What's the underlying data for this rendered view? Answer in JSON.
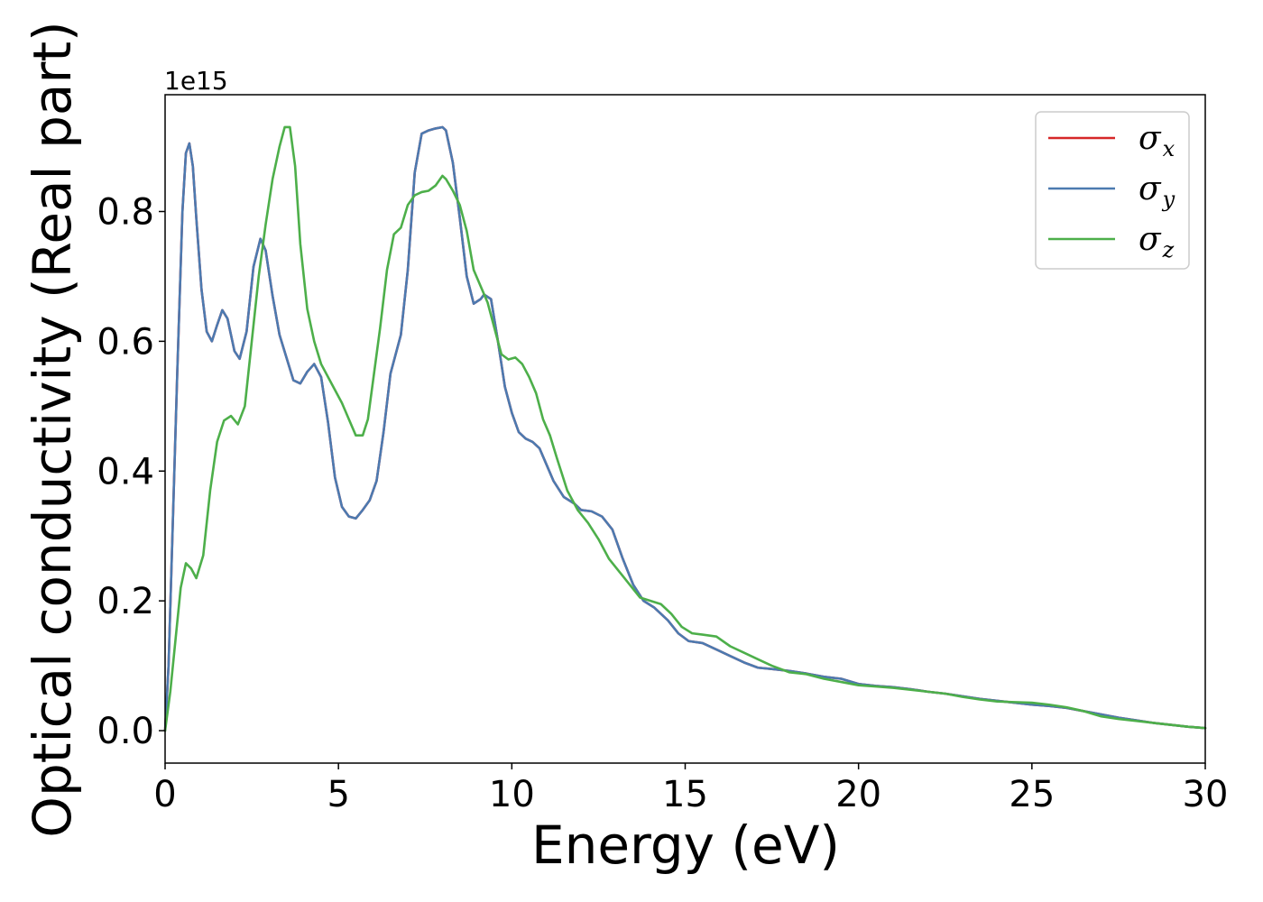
{
  "chart_data": {
    "type": "line",
    "xlabel": "Energy (eV)",
    "ylabel": "Optical conductivity (Real part)",
    "y_offset_label": "1e15",
    "y_scale": 1000000000000000.0,
    "xlim": [
      0,
      30
    ],
    "ylim": [
      -0.05,
      0.98
    ],
    "x_ticks": [
      0,
      5,
      10,
      15,
      20,
      25,
      30
    ],
    "x_tick_labels": [
      "0",
      "5",
      "10",
      "15",
      "20",
      "25",
      "30"
    ],
    "y_ticks": [
      0.0,
      0.2,
      0.4,
      0.6,
      0.8
    ],
    "y_tick_labels": [
      "0.0",
      "0.2",
      "0.4",
      "0.6",
      "0.8"
    ],
    "grid": false,
    "legend_position": "top-right",
    "series": [
      {
        "name": "σx",
        "symbol": "σ",
        "subscript": "x",
        "color": "#d62728",
        "x": [
          0,
          0.1,
          0.2,
          0.35,
          0.5,
          0.6,
          0.7,
          0.8,
          0.9,
          1.05,
          1.2,
          1.35,
          1.5,
          1.65,
          1.8,
          2.0,
          2.15,
          2.35,
          2.55,
          2.75,
          2.9,
          3.1,
          3.3,
          3.5,
          3.7,
          3.9,
          4.1,
          4.3,
          4.5,
          4.7,
          4.9,
          5.1,
          5.3,
          5.5,
          5.7,
          5.9,
          6.1,
          6.3,
          6.5,
          6.8,
          7.0,
          7.2,
          7.4,
          7.6,
          7.8,
          8.0,
          8.1,
          8.3,
          8.5,
          8.7,
          8.9,
          9.1,
          9.2,
          9.4,
          9.6,
          9.8,
          10.0,
          10.2,
          10.4,
          10.6,
          10.8,
          11.0,
          11.2,
          11.5,
          11.8,
          12.0,
          12.3,
          12.6,
          12.9,
          13.2,
          13.5,
          13.8,
          14.1,
          14.5,
          14.8,
          15.1,
          15.5,
          15.9,
          16.3,
          16.7,
          17.1,
          17.5,
          18.0,
          18.5,
          19.0,
          19.5,
          20.0,
          20.5,
          21.0,
          21.5,
          22.0,
          22.5,
          23.0,
          23.5,
          24.0,
          24.5,
          25.0,
          25.5,
          26.0,
          26.5,
          27.0,
          27.5,
          28.0,
          28.5,
          29.0,
          29.5,
          30.0
        ],
        "values": [
          0.0,
          0.1,
          0.28,
          0.55,
          0.8,
          0.89,
          0.905,
          0.87,
          0.79,
          0.68,
          0.615,
          0.6,
          0.625,
          0.648,
          0.635,
          0.585,
          0.573,
          0.615,
          0.715,
          0.758,
          0.74,
          0.67,
          0.61,
          0.575,
          0.54,
          0.535,
          0.553,
          0.565,
          0.545,
          0.475,
          0.39,
          0.345,
          0.33,
          0.327,
          0.34,
          0.355,
          0.385,
          0.46,
          0.55,
          0.61,
          0.71,
          0.86,
          0.92,
          0.925,
          0.928,
          0.93,
          0.925,
          0.875,
          0.79,
          0.7,
          0.658,
          0.665,
          0.672,
          0.665,
          0.6,
          0.53,
          0.49,
          0.46,
          0.45,
          0.445,
          0.435,
          0.41,
          0.385,
          0.36,
          0.35,
          0.34,
          0.338,
          0.33,
          0.31,
          0.265,
          0.225,
          0.2,
          0.19,
          0.17,
          0.15,
          0.138,
          0.135,
          0.125,
          0.115,
          0.105,
          0.097,
          0.095,
          0.092,
          0.088,
          0.083,
          0.08,
          0.072,
          0.069,
          0.067,
          0.064,
          0.06,
          0.057,
          0.053,
          0.049,
          0.046,
          0.043,
          0.04,
          0.038,
          0.035,
          0.03,
          0.025,
          0.02,
          0.016,
          0.012,
          0.009,
          0.006,
          0.004
        ]
      },
      {
        "name": "σy",
        "symbol": "σ",
        "subscript": "y",
        "color": "#4c7ab0",
        "x": [
          0,
          0.1,
          0.2,
          0.35,
          0.5,
          0.6,
          0.7,
          0.8,
          0.9,
          1.05,
          1.2,
          1.35,
          1.5,
          1.65,
          1.8,
          2.0,
          2.15,
          2.35,
          2.55,
          2.75,
          2.9,
          3.1,
          3.3,
          3.5,
          3.7,
          3.9,
          4.1,
          4.3,
          4.5,
          4.7,
          4.9,
          5.1,
          5.3,
          5.5,
          5.7,
          5.9,
          6.1,
          6.3,
          6.5,
          6.8,
          7.0,
          7.2,
          7.4,
          7.6,
          7.8,
          8.0,
          8.1,
          8.3,
          8.5,
          8.7,
          8.9,
          9.1,
          9.2,
          9.4,
          9.6,
          9.8,
          10.0,
          10.2,
          10.4,
          10.6,
          10.8,
          11.0,
          11.2,
          11.5,
          11.8,
          12.0,
          12.3,
          12.6,
          12.9,
          13.2,
          13.5,
          13.8,
          14.1,
          14.5,
          14.8,
          15.1,
          15.5,
          15.9,
          16.3,
          16.7,
          17.1,
          17.5,
          18.0,
          18.5,
          19.0,
          19.5,
          20.0,
          20.5,
          21.0,
          21.5,
          22.0,
          22.5,
          23.0,
          23.5,
          24.0,
          24.5,
          25.0,
          25.5,
          26.0,
          26.5,
          27.0,
          27.5,
          28.0,
          28.5,
          29.0,
          29.5,
          30.0
        ],
        "values": [
          0.0,
          0.1,
          0.28,
          0.55,
          0.8,
          0.89,
          0.905,
          0.87,
          0.79,
          0.68,
          0.615,
          0.6,
          0.625,
          0.648,
          0.635,
          0.585,
          0.573,
          0.615,
          0.715,
          0.758,
          0.74,
          0.67,
          0.61,
          0.575,
          0.54,
          0.535,
          0.553,
          0.565,
          0.545,
          0.475,
          0.39,
          0.345,
          0.33,
          0.327,
          0.34,
          0.355,
          0.385,
          0.46,
          0.55,
          0.61,
          0.71,
          0.86,
          0.92,
          0.925,
          0.928,
          0.93,
          0.925,
          0.875,
          0.79,
          0.7,
          0.658,
          0.665,
          0.672,
          0.665,
          0.6,
          0.53,
          0.49,
          0.46,
          0.45,
          0.445,
          0.435,
          0.41,
          0.385,
          0.36,
          0.35,
          0.34,
          0.338,
          0.33,
          0.31,
          0.265,
          0.225,
          0.2,
          0.19,
          0.17,
          0.15,
          0.138,
          0.135,
          0.125,
          0.115,
          0.105,
          0.097,
          0.095,
          0.092,
          0.088,
          0.083,
          0.08,
          0.072,
          0.069,
          0.067,
          0.064,
          0.06,
          0.057,
          0.053,
          0.049,
          0.046,
          0.043,
          0.04,
          0.038,
          0.035,
          0.03,
          0.025,
          0.02,
          0.016,
          0.012,
          0.009,
          0.006,
          0.004
        ]
      },
      {
        "name": "σz",
        "symbol": "σ",
        "subscript": "z",
        "color": "#4daf4a",
        "x": [
          0,
          0.15,
          0.3,
          0.45,
          0.6,
          0.75,
          0.9,
          1.1,
          1.3,
          1.5,
          1.7,
          1.9,
          2.1,
          2.3,
          2.5,
          2.7,
          2.9,
          3.1,
          3.3,
          3.45,
          3.6,
          3.75,
          3.9,
          4.1,
          4.3,
          4.5,
          4.7,
          4.9,
          5.1,
          5.3,
          5.5,
          5.7,
          5.85,
          6.0,
          6.2,
          6.4,
          6.6,
          6.8,
          7.0,
          7.2,
          7.4,
          7.6,
          7.8,
          8.0,
          8.1,
          8.3,
          8.5,
          8.7,
          8.9,
          9.1,
          9.3,
          9.5,
          9.7,
          9.9,
          10.1,
          10.3,
          10.5,
          10.7,
          10.9,
          11.1,
          11.3,
          11.6,
          11.9,
          12.2,
          12.5,
          12.8,
          13.1,
          13.4,
          13.7,
          14.0,
          14.3,
          14.6,
          14.9,
          15.2,
          15.5,
          15.9,
          16.3,
          16.7,
          17.1,
          17.5,
          18.0,
          18.5,
          19.0,
          19.5,
          20.0,
          20.5,
          21.0,
          21.5,
          22.0,
          22.5,
          23.0,
          23.5,
          24.0,
          24.5,
          25.0,
          25.5,
          26.0,
          26.5,
          27.0,
          27.5,
          28.0,
          28.5,
          29.0,
          29.5,
          30.0
        ],
        "values": [
          0.0,
          0.06,
          0.14,
          0.22,
          0.258,
          0.25,
          0.235,
          0.27,
          0.37,
          0.445,
          0.478,
          0.485,
          0.472,
          0.5,
          0.6,
          0.7,
          0.78,
          0.85,
          0.9,
          0.93,
          0.93,
          0.87,
          0.75,
          0.65,
          0.6,
          0.565,
          0.545,
          0.525,
          0.505,
          0.48,
          0.455,
          0.455,
          0.48,
          0.54,
          0.62,
          0.71,
          0.765,
          0.775,
          0.81,
          0.825,
          0.83,
          0.832,
          0.84,
          0.855,
          0.85,
          0.832,
          0.81,
          0.77,
          0.71,
          0.685,
          0.66,
          0.62,
          0.58,
          0.572,
          0.575,
          0.565,
          0.545,
          0.52,
          0.48,
          0.455,
          0.42,
          0.37,
          0.34,
          0.32,
          0.295,
          0.265,
          0.245,
          0.225,
          0.205,
          0.2,
          0.195,
          0.18,
          0.16,
          0.15,
          0.148,
          0.145,
          0.13,
          0.12,
          0.11,
          0.1,
          0.09,
          0.087,
          0.08,
          0.075,
          0.07,
          0.068,
          0.066,
          0.063,
          0.06,
          0.057,
          0.052,
          0.048,
          0.045,
          0.044,
          0.043,
          0.04,
          0.036,
          0.03,
          0.022,
          0.018,
          0.015,
          0.012,
          0.009,
          0.006,
          0.004
        ]
      }
    ]
  }
}
